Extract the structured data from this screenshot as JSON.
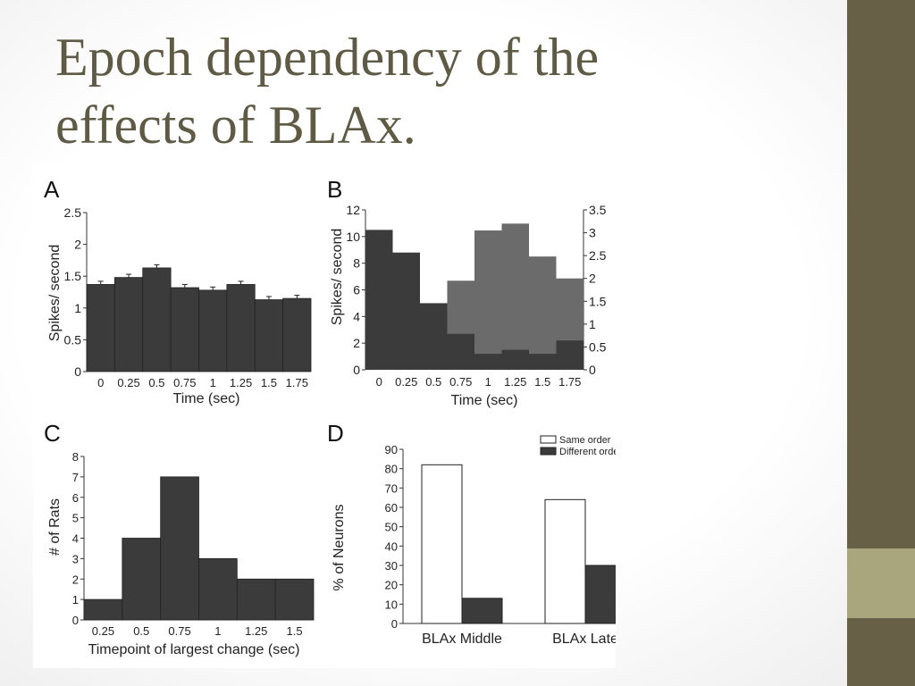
{
  "slide": {
    "title_line1": "Epoch dependency of the",
    "title_line2": "effects of BLAx."
  },
  "colors": {
    "bar_dark": "#3b3b3b",
    "bar_gray": "#6b6b6b",
    "title": "#5f5a44",
    "sidebar": "#675f46",
    "sidebar_accent": "#a9a57d"
  },
  "chart_data": [
    {
      "panel": "A",
      "type": "bar",
      "xlabel": "Time (sec)",
      "ylabel": "Spikes/ second",
      "categories": [
        "0",
        "0.25",
        "0.5",
        "0.75",
        "1",
        "1.25",
        "1.5",
        "1.75"
      ],
      "yticks": [
        "0",
        "0.5",
        "1",
        "1.5",
        "2",
        "2.5"
      ],
      "ylim": [
        0,
        2.5
      ],
      "values": [
        1.37,
        1.48,
        1.63,
        1.32,
        1.28,
        1.37,
        1.13,
        1.15
      ],
      "error": [
        0.05,
        0.05,
        0.05,
        0.05,
        0.05,
        0.05,
        0.05,
        0.05
      ]
    },
    {
      "panel": "B",
      "type": "bar",
      "xlabel": "Time (sec)",
      "ylabel": "Spikes/ second",
      "categories": [
        "0",
        "0.25",
        "0.5",
        "0.75",
        "1",
        "1.25",
        "1.5",
        "1.75"
      ],
      "yticks_left": [
        "0",
        "2",
        "4",
        "6",
        "8",
        "10",
        "12"
      ],
      "ylim_left": [
        0,
        12
      ],
      "yticks_right": [
        "0",
        "0.5",
        "1",
        "1.5",
        "2",
        "2.5",
        "3",
        "3.5"
      ],
      "ylim_right": [
        0,
        3.5
      ],
      "series": [
        {
          "axis": "left",
          "color": "#3b3b3b",
          "values": [
            10.5,
            8.8,
            5.0,
            2.7,
            1.2,
            1.5,
            1.2,
            2.2
          ]
        },
        {
          "axis": "right",
          "color": "#6b6b6b",
          "values": [
            null,
            null,
            null,
            1.95,
            3.05,
            3.2,
            2.48,
            2.0
          ]
        }
      ]
    },
    {
      "panel": "C",
      "type": "bar",
      "xlabel": "Timepoint of largest change (sec)",
      "ylabel": "# of Rats",
      "categories": [
        "0.25",
        "0.5",
        "0.75",
        "1",
        "1.25",
        "1.5"
      ],
      "yticks": [
        "0",
        "1",
        "2",
        "3",
        "4",
        "5",
        "6",
        "7",
        "8"
      ],
      "ylim": [
        0,
        8
      ],
      "values": [
        1,
        4,
        7,
        3,
        2,
        2
      ]
    },
    {
      "panel": "D",
      "type": "bar",
      "ylabel": "% of Neurons",
      "categories": [
        "BLAx Middle",
        "BLAx Late"
      ],
      "yticks": [
        "0",
        "10",
        "20",
        "30",
        "40",
        "50",
        "60",
        "70",
        "80",
        "90"
      ],
      "ylim": [
        0,
        90
      ],
      "series": [
        {
          "name": "Same order",
          "fill": "#ffffff",
          "values": [
            82,
            64
          ]
        },
        {
          "name": "Different order",
          "fill": "#3b3b3b",
          "values": [
            13,
            30
          ]
        }
      ],
      "legend": "top-right"
    }
  ]
}
